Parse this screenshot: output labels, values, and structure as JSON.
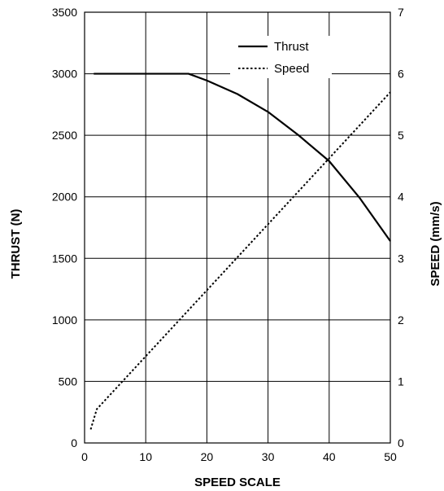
{
  "chart_data": {
    "type": "line",
    "title": "",
    "xlabel": "SPEED SCALE",
    "ylabel_left": "THRUST (N)",
    "ylabel_right": "SPEED (mm/s)",
    "xlim": [
      0,
      50
    ],
    "ylim_left": [
      0,
      3500
    ],
    "ylim_right": [
      0,
      7
    ],
    "x_ticks": [
      0,
      10,
      20,
      30,
      40,
      50
    ],
    "y_left_ticks": [
      0,
      500,
      1000,
      1500,
      2000,
      2500,
      3000,
      3500
    ],
    "y_right_ticks": [
      0,
      1,
      2,
      3,
      4,
      5,
      6,
      7
    ],
    "grid": true,
    "legend_position": "top-right",
    "series": [
      {
        "name": "Thrust",
        "axis": "left",
        "style": "solid",
        "color": "#000000",
        "x": [
          1.5,
          17,
          20,
          25,
          30,
          35,
          40,
          45,
          50
        ],
        "y": [
          3000,
          3000,
          2945,
          2835,
          2690,
          2500,
          2290,
          1990,
          1640
        ]
      },
      {
        "name": "Speed",
        "axis": "right",
        "style": "dotted",
        "color": "#000000",
        "x": [
          1,
          2,
          50
        ],
        "y": [
          0.22,
          0.55,
          5.7
        ]
      }
    ]
  }
}
